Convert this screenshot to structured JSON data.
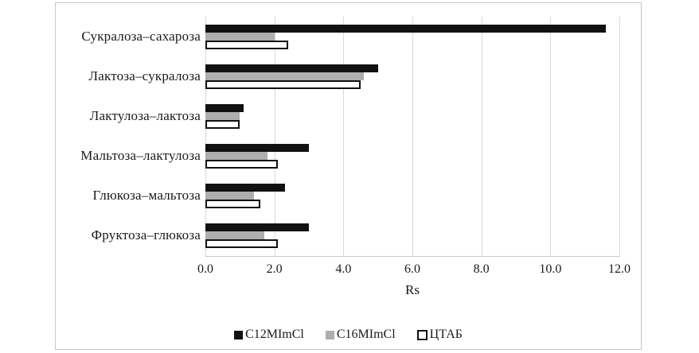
{
  "chart_data": {
    "type": "bar",
    "orientation": "horizontal",
    "title": "",
    "xlabel": "Rs",
    "ylabel": "",
    "xlim": [
      0,
      12
    ],
    "xticks": [
      "0.0",
      "2.0",
      "4.0",
      "6.0",
      "8.0",
      "10.0",
      "12.0"
    ],
    "grid": true,
    "legend_position": "bottom",
    "categories": [
      "Сукралоза–сахароза",
      "Лактоза–сукралоза",
      "Лактулоза–лактоза",
      "Мальтоза–лактулоза",
      "Глюкоза–мальтоза",
      "Фруктоза–глюкоза"
    ],
    "series": [
      {
        "name": "C12MImCl",
        "color": "#111111",
        "values": [
          11.6,
          5.0,
          1.1,
          3.0,
          2.3,
          3.0
        ]
      },
      {
        "name": "C16MImCl",
        "color": "#aeaeae",
        "values": [
          2.0,
          4.6,
          1.0,
          1.8,
          1.4,
          1.7
        ]
      },
      {
        "name": "ЦТАБ",
        "color": "#ffffff",
        "values": [
          2.4,
          4.5,
          1.0,
          2.1,
          1.6,
          2.1
        ]
      }
    ]
  },
  "colors": {
    "series_black": "#111111",
    "series_gray": "#aeaeae",
    "series_white": "#ffffff",
    "gridline": "#d9d9d9",
    "figure_border": "#c6c6c6",
    "text": "#1a1a1a"
  }
}
